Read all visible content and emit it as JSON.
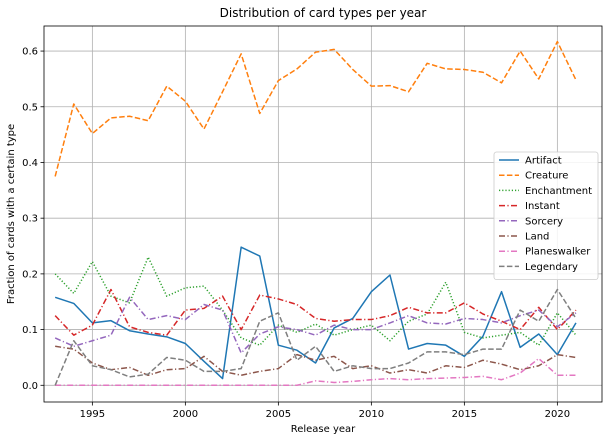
{
  "chart_data": {
    "type": "line",
    "title": "Distribution of card types per year",
    "xlabel": "Release year",
    "ylabel": "Fraction of cards with a certain type",
    "xlim": [
      1992.4,
      2022.4
    ],
    "ylim": [
      -0.03,
      0.645
    ],
    "xticks": [
      1995,
      2000,
      2005,
      2010,
      2015,
      2020
    ],
    "yticks": [
      0.0,
      0.1,
      0.2,
      0.3,
      0.4,
      0.5,
      0.6
    ],
    "xtick_labels": [
      "1995",
      "2000",
      "2005",
      "2010",
      "2015",
      "2020"
    ],
    "ytick_labels": [
      "0.0",
      "0.1",
      "0.2",
      "0.3",
      "0.4",
      "0.5",
      "0.6"
    ],
    "grid": true,
    "legend_position": "center-right",
    "x": [
      1993,
      1994,
      1995,
      1996,
      1997,
      1998,
      1999,
      2000,
      2001,
      2002,
      2003,
      2004,
      2005,
      2006,
      2007,
      2008,
      2009,
      2010,
      2011,
      2012,
      2013,
      2014,
      2015,
      2016,
      2017,
      2018,
      2019,
      2020,
      2021
    ],
    "series": [
      {
        "name": "Artifact",
        "color": "#1f77b4",
        "dash": "solid",
        "values": [
          0.158,
          0.147,
          0.112,
          0.116,
          0.098,
          0.092,
          0.087,
          0.075,
          0.043,
          0.012,
          0.248,
          0.232,
          0.072,
          0.063,
          0.04,
          0.103,
          0.12,
          0.168,
          0.198,
          0.065,
          0.075,
          0.072,
          0.052,
          0.088,
          0.168,
          0.068,
          0.092,
          0.055,
          0.112
        ]
      },
      {
        "name": "Creature",
        "color": "#ff7f0e",
        "dash": "dashed",
        "values": [
          0.375,
          0.505,
          0.452,
          0.48,
          0.483,
          0.475,
          0.537,
          0.51,
          0.46,
          0.527,
          0.595,
          0.488,
          0.547,
          0.568,
          0.598,
          0.603,
          0.567,
          0.537,
          0.538,
          0.527,
          0.578,
          0.568,
          0.567,
          0.562,
          0.543,
          0.6,
          0.55,
          0.617,
          0.548
        ]
      },
      {
        "name": "Enchantment",
        "color": "#2ca02c",
        "dash": "dotted",
        "values": [
          0.2,
          0.165,
          0.222,
          0.16,
          0.148,
          0.23,
          0.16,
          0.175,
          0.178,
          0.135,
          0.085,
          0.072,
          0.108,
          0.095,
          0.11,
          0.09,
          0.1,
          0.108,
          0.08,
          0.115,
          0.128,
          0.185,
          0.095,
          0.085,
          0.09,
          0.095,
          0.072,
          0.13,
          0.09
        ]
      },
      {
        "name": "Instant",
        "color": "#d62728",
        "dash": "dashdot",
        "values": [
          0.125,
          0.09,
          0.108,
          0.172,
          0.105,
          0.095,
          0.09,
          0.135,
          0.138,
          0.16,
          0.1,
          0.162,
          0.155,
          0.145,
          0.12,
          0.115,
          0.118,
          0.118,
          0.125,
          0.14,
          0.13,
          0.13,
          0.148,
          0.128,
          0.115,
          0.1,
          0.14,
          0.1,
          0.135
        ]
      },
      {
        "name": "Sorcery",
        "color": "#9467bd",
        "dash": "dashdot",
        "values": [
          0.085,
          0.07,
          0.08,
          0.09,
          0.158,
          0.118,
          0.125,
          0.118,
          0.145,
          0.135,
          0.058,
          0.092,
          0.105,
          0.1,
          0.09,
          0.108,
          0.1,
          0.1,
          0.112,
          0.125,
          0.112,
          0.11,
          0.12,
          0.118,
          0.112,
          0.125,
          0.135,
          0.105,
          0.13
        ]
      },
      {
        "name": "Land",
        "color": "#8c564b",
        "dash": "dashdot",
        "values": [
          0.07,
          0.065,
          0.04,
          0.028,
          0.032,
          0.018,
          0.028,
          0.03,
          0.052,
          0.025,
          0.018,
          0.025,
          0.03,
          0.055,
          0.045,
          0.052,
          0.03,
          0.035,
          0.022,
          0.028,
          0.022,
          0.035,
          0.032,
          0.045,
          0.038,
          0.028,
          0.035,
          0.055,
          0.05
        ]
      },
      {
        "name": "Planeswalker",
        "color": "#e377c2",
        "dash": "dashdot",
        "values": [
          0.0,
          0.0,
          0.0,
          0.0,
          0.0,
          0.0,
          0.0,
          0.0,
          0.0,
          0.0,
          0.0,
          0.0,
          0.0,
          0.0,
          0.008,
          0.005,
          0.007,
          0.01,
          0.012,
          0.01,
          0.012,
          0.013,
          0.014,
          0.016,
          0.01,
          0.022,
          0.048,
          0.018,
          0.018
        ]
      },
      {
        "name": "Legendary",
        "color": "#7f7f7f",
        "dash": "dashed",
        "values": [
          0.0,
          0.08,
          0.035,
          0.028,
          0.015,
          0.02,
          0.05,
          0.045,
          0.025,
          0.025,
          0.03,
          0.115,
          0.13,
          0.045,
          0.07,
          0.025,
          0.035,
          0.03,
          0.03,
          0.04,
          0.06,
          0.06,
          0.055,
          0.065,
          0.065,
          0.135,
          0.115,
          0.172,
          0.12
        ]
      }
    ]
  }
}
